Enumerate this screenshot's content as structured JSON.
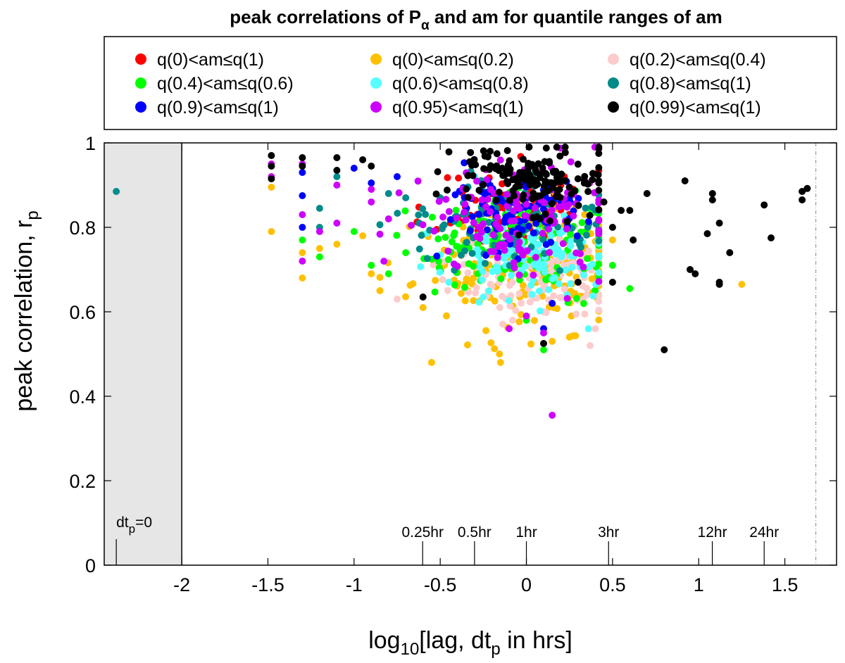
{
  "chart_data": {
    "type": "scatter",
    "title": {
      "main": "peak correlations of P",
      "sub": "α",
      "rest": " and am for quantile ranges of am"
    },
    "xlabel": {
      "pre": "log",
      "sub1": "10",
      "mid": "[lag, dt",
      "sub2": "p",
      "post": " in hrs]"
    },
    "ylabel": {
      "main": "peak correlation, r",
      "sub": "p"
    },
    "xlim": [
      -2.45,
      1.8
    ],
    "ylim": [
      0,
      1
    ],
    "xticks": [
      -2,
      -1.5,
      -1,
      -0.5,
      0,
      0.5,
      1,
      1.5
    ],
    "xtick_labels": [
      "-2",
      "-1.5",
      "-1",
      "-0.5",
      "0",
      "0.5",
      "1",
      "1.5"
    ],
    "yticks": [
      0,
      0.2,
      0.4,
      0.6,
      0.8,
      1
    ],
    "ytick_labels": [
      "0",
      "0.2",
      "0.4",
      "0.6",
      "0.8",
      "1"
    ],
    "shaded_region": {
      "x_from": -2.45,
      "x_to": -2,
      "color": "#e6e6e6",
      "label_main": "dt",
      "label_sub": "p",
      "label_post": "=0",
      "marker_x": -2.38
    },
    "reference_line_x": 1.68,
    "lag_markers": [
      {
        "label": "0.25hr",
        "x": -0.602
      },
      {
        "label": "0.5hr",
        "x": -0.301
      },
      {
        "label": "1hr",
        "x": 0
      },
      {
        "label": "3hr",
        "x": 0.477
      },
      {
        "label": "12hr",
        "x": 1.079
      },
      {
        "label": "24hr",
        "x": 1.38
      }
    ],
    "legend": {
      "placement": "top",
      "columns": 3
    },
    "series": [
      {
        "name": "q(0)<am≤q(1)",
        "color": "#ff0000",
        "seed": 11,
        "n": 70,
        "x_mean": -0.08,
        "x_spread": 0.22,
        "y_mean": 0.845,
        "y_spread": 0.045,
        "points": [
          [
            -0.2,
            0.88
          ],
          [
            -0.1,
            0.86
          ],
          [
            0.2,
            0.9
          ],
          [
            0.22,
            0.92
          ],
          [
            0.05,
            0.76
          ]
        ]
      },
      {
        "name": "q(0)<am≤q(0.2)",
        "color": "#ffc000",
        "seed": 23,
        "n": 190,
        "x_mean": 0.0,
        "x_spread": 0.32,
        "y_mean": 0.7,
        "y_spread": 0.07,
        "points": [
          [
            -1.48,
            0.895
          ],
          [
            -1.48,
            0.79
          ],
          [
            -1.3,
            0.74
          ],
          [
            -1.3,
            0.68
          ],
          [
            -1.2,
            0.75
          ],
          [
            -1.1,
            0.76
          ],
          [
            -0.95,
            0.78
          ],
          [
            -0.9,
            0.69
          ],
          [
            -0.85,
            0.65
          ],
          [
            -0.6,
            0.61
          ],
          [
            -0.55,
            0.48
          ],
          [
            -0.15,
            0.48
          ],
          [
            0.15,
            0.53
          ],
          [
            0.25,
            0.54
          ],
          [
            0.5,
            0.77
          ],
          [
            1.25,
            0.665
          ]
        ]
      },
      {
        "name": "q(0.2)<am≤q(0.4)",
        "color": "#fccccc",
        "seed": 37,
        "n": 120,
        "x_mean": 0.05,
        "x_spread": 0.25,
        "y_mean": 0.69,
        "y_spread": 0.05,
        "points": [
          [
            -0.75,
            0.63
          ],
          [
            -0.2,
            0.66
          ],
          [
            0.1,
            0.6
          ],
          [
            0.37,
            0.52
          ],
          [
            0.35,
            0.64
          ],
          [
            0.4,
            0.56
          ]
        ]
      },
      {
        "name": "q(0.4)<am≤q(0.6)",
        "color": "#00ff00",
        "seed": 41,
        "n": 150,
        "x_mean": -0.05,
        "x_spread": 0.3,
        "y_mean": 0.76,
        "y_spread": 0.055,
        "points": [
          [
            -1.3,
            0.77
          ],
          [
            -1.2,
            0.73
          ],
          [
            -1.0,
            0.79
          ],
          [
            -0.9,
            0.71
          ],
          [
            -0.8,
            0.69
          ],
          [
            -0.7,
            0.74
          ],
          [
            0.6,
            0.655
          ],
          [
            0.5,
            0.71
          ],
          [
            0.1,
            0.51
          ],
          [
            0.0,
            0.58
          ]
        ]
      },
      {
        "name": "q(0.6)<am≤q(0.8)",
        "color": "#55ffff",
        "seed": 53,
        "n": 130,
        "x_mean": 0.05,
        "x_spread": 0.25,
        "y_mean": 0.73,
        "y_spread": 0.045,
        "points": [
          [
            -0.45,
            0.67
          ],
          [
            0.36,
            0.56
          ],
          [
            0.4,
            0.84
          ],
          [
            -0.3,
            0.92
          ]
        ]
      },
      {
        "name": "q(0.8)<am≤q(1)",
        "color": "#008b8b",
        "seed": 67,
        "n": 110,
        "x_mean": -0.1,
        "x_spread": 0.3,
        "y_mean": 0.8,
        "y_spread": 0.05,
        "points": [
          [
            -2.38,
            0.885
          ],
          [
            -1.2,
            0.845
          ],
          [
            -1.2,
            0.8
          ],
          [
            -1.1,
            0.92
          ],
          [
            -0.8,
            0.88
          ],
          [
            -0.7,
            0.87
          ],
          [
            -0.5,
            0.87
          ]
        ]
      },
      {
        "name": "q(0.9)<am≤q(1)",
        "color": "#0000ff",
        "seed": 71,
        "n": 100,
        "x_mean": -0.05,
        "x_spread": 0.22,
        "y_mean": 0.835,
        "y_spread": 0.05,
        "points": [
          [
            -1.3,
            0.93
          ],
          [
            -1.3,
            0.875
          ],
          [
            -1.3,
            0.8
          ],
          [
            -1.0,
            0.94
          ],
          [
            -0.9,
            0.905
          ],
          [
            -0.75,
            0.92
          ],
          [
            0.1,
            0.56
          ],
          [
            0.15,
            0.62
          ]
        ]
      },
      {
        "name": "q(0.95)<am≤q(1)",
        "color": "#cc00ff",
        "seed": 83,
        "n": 130,
        "x_mean": -0.05,
        "x_spread": 0.3,
        "y_mean": 0.82,
        "y_spread": 0.07,
        "points": [
          [
            -1.48,
            0.95
          ],
          [
            -1.48,
            0.92
          ],
          [
            -1.3,
            0.95
          ],
          [
            -1.3,
            0.83
          ],
          [
            -1.3,
            0.72
          ],
          [
            -1.2,
            0.79
          ],
          [
            -1.1,
            0.9
          ],
          [
            -1.1,
            0.81
          ],
          [
            -0.9,
            0.89
          ],
          [
            -0.9,
            0.86
          ],
          [
            -0.8,
            0.82
          ],
          [
            0.15,
            0.355
          ],
          [
            -0.1,
            0.56
          ],
          [
            0.0,
            0.59
          ],
          [
            0.1,
            0.55
          ]
        ]
      },
      {
        "name": "q(0.99)<am≤q(1)",
        "color": "#000000",
        "seed": 97,
        "n": 150,
        "x_mean": -0.02,
        "x_spread": 0.25,
        "y_mean": 0.915,
        "y_spread": 0.045,
        "points": [
          [
            -1.48,
            0.97
          ],
          [
            -1.48,
            0.945
          ],
          [
            -1.48,
            0.915
          ],
          [
            -1.3,
            0.965
          ],
          [
            -1.3,
            0.945
          ],
          [
            -1.1,
            0.965
          ],
          [
            -1.1,
            0.935
          ],
          [
            -0.95,
            0.96
          ],
          [
            -0.9,
            0.945
          ],
          [
            -0.6,
            0.635
          ],
          [
            0.1,
            0.525
          ],
          [
            0.3,
            0.67
          ],
          [
            0.5,
            0.67
          ],
          [
            0.45,
            0.86
          ],
          [
            0.5,
            0.8
          ],
          [
            0.55,
            0.84
          ],
          [
            0.6,
            0.84
          ],
          [
            0.62,
            0.77
          ],
          [
            0.7,
            0.88
          ],
          [
            0.92,
            0.91
          ],
          [
            0.95,
            0.7
          ],
          [
            0.98,
            0.69
          ],
          [
            1.05,
            0.785
          ],
          [
            1.08,
            0.88
          ],
          [
            1.08,
            0.865
          ],
          [
            1.12,
            0.81
          ],
          [
            1.12,
            0.67
          ],
          [
            1.12,
            0.665
          ],
          [
            1.18,
            0.74
          ],
          [
            1.38,
            0.853
          ],
          [
            1.42,
            0.775
          ],
          [
            1.6,
            0.885
          ],
          [
            1.6,
            0.865
          ],
          [
            1.63,
            0.892
          ],
          [
            0.8,
            0.51
          ]
        ]
      }
    ]
  }
}
